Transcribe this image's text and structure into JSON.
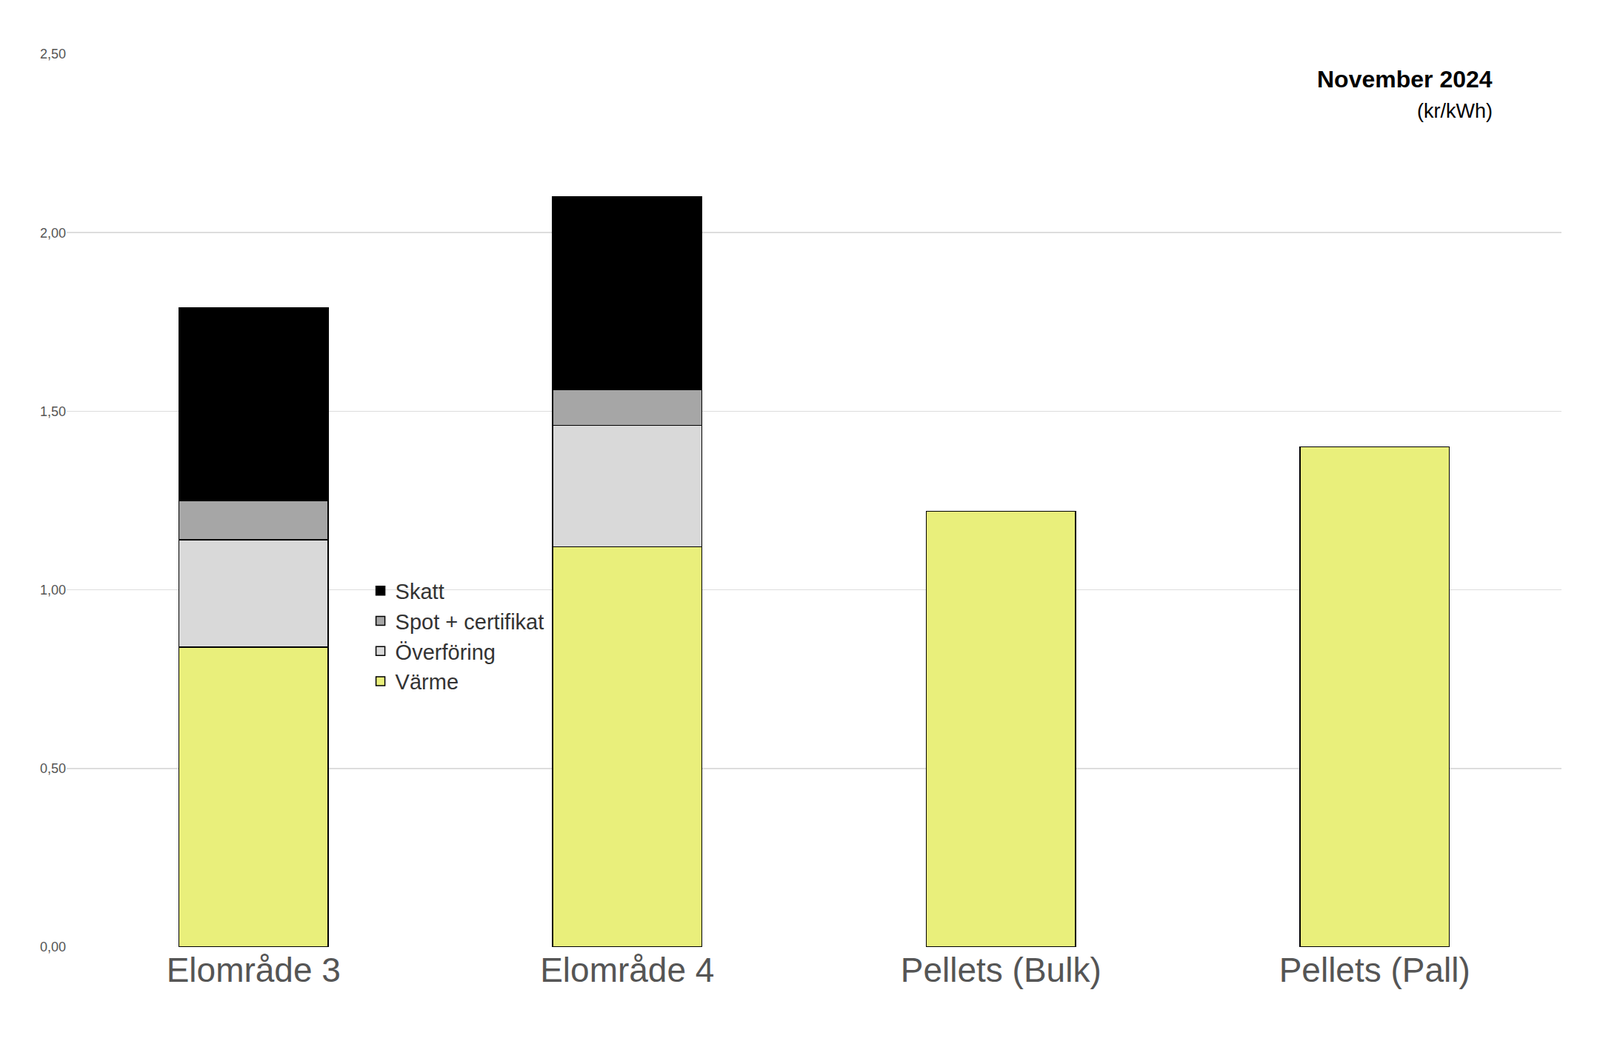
{
  "chart_data": {
    "type": "bar",
    "stacked": true,
    "title": "November 2024",
    "subtitle": "(kr/kWh)",
    "categories": [
      "Elområde 3",
      "Elområde 4",
      "Pellets (Bulk)",
      "Pellets (Pall)"
    ],
    "series": [
      {
        "name": "Värme",
        "color": "#e9ef7b",
        "values": [
          0.84,
          1.12,
          1.22,
          1.4
        ]
      },
      {
        "name": "Överföring",
        "color": "#d9d9d9",
        "values": [
          0.3,
          0.34,
          null,
          null
        ]
      },
      {
        "name": "Spot + certifikat",
        "color": "#a6a6a6",
        "values": [
          0.11,
          0.1,
          null,
          null
        ]
      },
      {
        "name": "Skatt",
        "color": "#000000",
        "values": [
          0.54,
          0.54,
          null,
          null
        ]
      }
    ],
    "ylim": [
      0,
      2.5
    ],
    "yticks": [
      {
        "value": 0,
        "label": "0,00"
      },
      {
        "value": 0.5,
        "label": "0,50"
      },
      {
        "value": 1,
        "label": "1,00"
      },
      {
        "value": 1.5,
        "label": "1,50"
      },
      {
        "value": 2,
        "label": "2,00"
      },
      {
        "value": 2.5,
        "label": "2,50"
      }
    ],
    "grid": true,
    "legend": "left"
  }
}
